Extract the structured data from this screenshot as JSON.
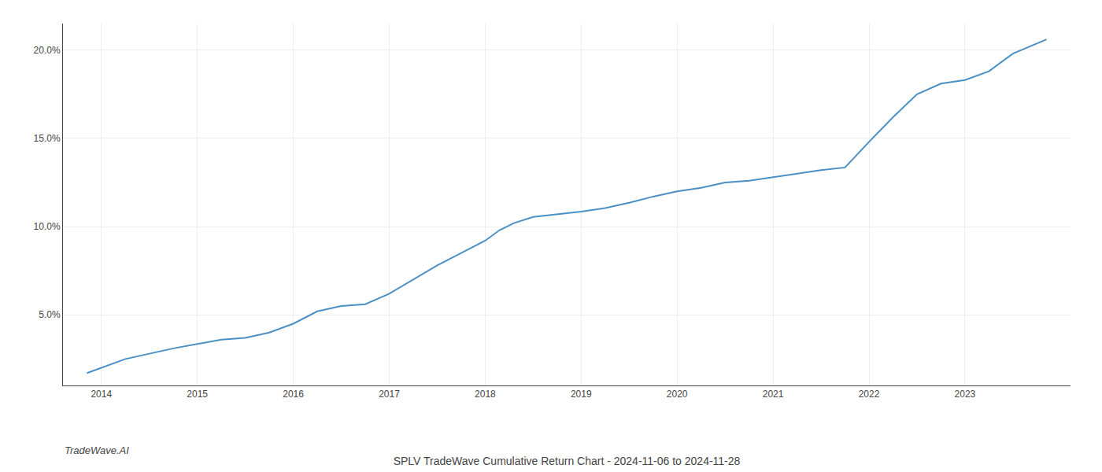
{
  "chart_data": {
    "type": "line",
    "title": "SPLV TradeWave Cumulative Return Chart - 2024-11-06 to 2024-11-28",
    "annotations": [
      "TradeWave.AI"
    ],
    "color": "#4a90c4",
    "grid": true,
    "x": [
      2013.85,
      2014.05,
      2014.25,
      2014.5,
      2014.75,
      2015.0,
      2015.25,
      2015.5,
      2015.75,
      2016.0,
      2016.25,
      2016.5,
      2016.75,
      2017.0,
      2017.25,
      2017.5,
      2017.75,
      2018.0,
      2018.15,
      2018.3,
      2018.5,
      2018.75,
      2019.0,
      2019.25,
      2019.5,
      2019.75,
      2020.0,
      2020.25,
      2020.5,
      2020.75,
      2021.0,
      2021.25,
      2021.5,
      2021.75,
      2022.0,
      2022.25,
      2022.5,
      2022.75,
      2023.0,
      2023.25,
      2023.5,
      2023.85
    ],
    "values": [
      1.7,
      2.1,
      2.5,
      2.8,
      3.1,
      3.35,
      3.6,
      3.7,
      4.0,
      4.5,
      5.2,
      5.5,
      5.6,
      6.2,
      7.0,
      7.8,
      8.5,
      9.2,
      9.8,
      10.2,
      10.55,
      10.7,
      10.85,
      11.05,
      11.35,
      11.7,
      12.0,
      12.2,
      12.5,
      12.6,
      12.8,
      13.0,
      13.2,
      13.35,
      14.8,
      16.2,
      17.5,
      18.1,
      18.3,
      18.8,
      19.8,
      20.6
    ],
    "xlim": [
      2013.6,
      2024.1
    ],
    "xticks": [
      2014,
      2015,
      2016,
      2017,
      2018,
      2019,
      2020,
      2021,
      2022,
      2023
    ],
    "ylim": [
      1.0,
      21.5
    ],
    "yticks": [
      {
        "value": 5.0,
        "label": "5.0%"
      },
      {
        "value": 10.0,
        "label": "10.0%"
      },
      {
        "value": 15.0,
        "label": "15.0%"
      },
      {
        "value": 20.0,
        "label": "20.0%"
      }
    ]
  }
}
